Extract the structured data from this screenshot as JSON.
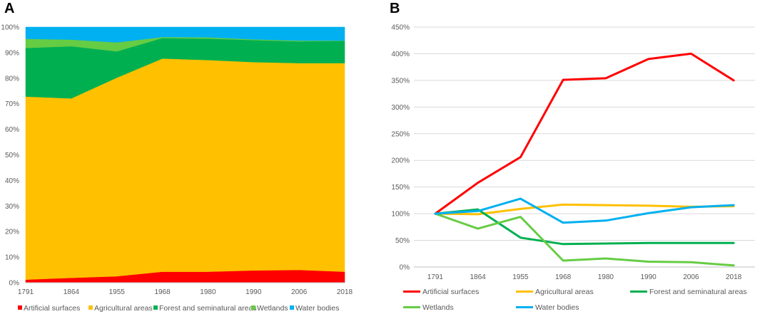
{
  "chart_data": [
    {
      "panel": "A",
      "type": "area",
      "stacked": true,
      "normalized": true,
      "categories": [
        "1791",
        "1864",
        "1955",
        "1968",
        "1980",
        "1990",
        "2006",
        "2018"
      ],
      "ylim": [
        0,
        100
      ],
      "yticks": [
        "0%",
        "10%",
        "20%",
        "30%",
        "40%",
        "50%",
        "60%",
        "70%",
        "80%",
        "90%",
        "100%"
      ],
      "legend_position": "bottom",
      "series": [
        {
          "name": "Artificial surfaces",
          "color": "#ff0000",
          "values": [
            1.2,
            1.9,
            2.5,
            4.3,
            4.3,
            4.8,
            5.0,
            4.3
          ]
        },
        {
          "name": "Agricultural areas",
          "color": "#ffc000",
          "values": [
            71.6,
            70.2,
            77.7,
            83.4,
            82.8,
            81.5,
            80.9,
            81.6
          ]
        },
        {
          "name": "Forest and seminatural areas",
          "color": "#00b050",
          "values": [
            19.0,
            20.4,
            10.3,
            8.0,
            8.4,
            8.6,
            8.5,
            8.7
          ]
        },
        {
          "name": "Wetlands",
          "color": "#66cc44",
          "values": [
            3.6,
            2.6,
            3.5,
            0.4,
            0.5,
            0.3,
            0.3,
            0.1
          ]
        },
        {
          "name": "Water bodies",
          "color": "#00b0f0",
          "values": [
            4.6,
            4.9,
            6.0,
            3.9,
            4.0,
            4.8,
            5.3,
            5.3
          ]
        }
      ]
    },
    {
      "panel": "B",
      "type": "line",
      "categories": [
        "1791",
        "1864",
        "1955",
        "1968",
        "1980",
        "1990",
        "2006",
        "2018"
      ],
      "ylim": [
        0,
        450
      ],
      "yticks": [
        "0%",
        "50%",
        "100%",
        "150%",
        "200%",
        "250%",
        "300%",
        "350%",
        "400%",
        "450%"
      ],
      "grid": true,
      "legend_position": "bottom",
      "series": [
        {
          "name": "Artificial surfaces",
          "color": "#ff0000",
          "values": [
            100,
            158,
            206,
            351,
            354,
            390,
            400,
            350
          ]
        },
        {
          "name": "Agricultural areas",
          "color": "#ffc000",
          "values": [
            100,
            99,
            109,
            117,
            116,
            115,
            113,
            114
          ]
        },
        {
          "name": "Forest and seminatural areas",
          "color": "#00b050",
          "values": [
            100,
            108,
            55,
            43,
            44,
            45,
            45,
            45
          ]
        },
        {
          "name": "Wetlands",
          "color": "#66cc44",
          "values": [
            100,
            72,
            94,
            12,
            16,
            10,
            9,
            3
          ]
        },
        {
          "name": "Water bodies",
          "color": "#00b0f0",
          "values": [
            100,
            105,
            128,
            83,
            87,
            101,
            112,
            116
          ]
        }
      ]
    }
  ]
}
